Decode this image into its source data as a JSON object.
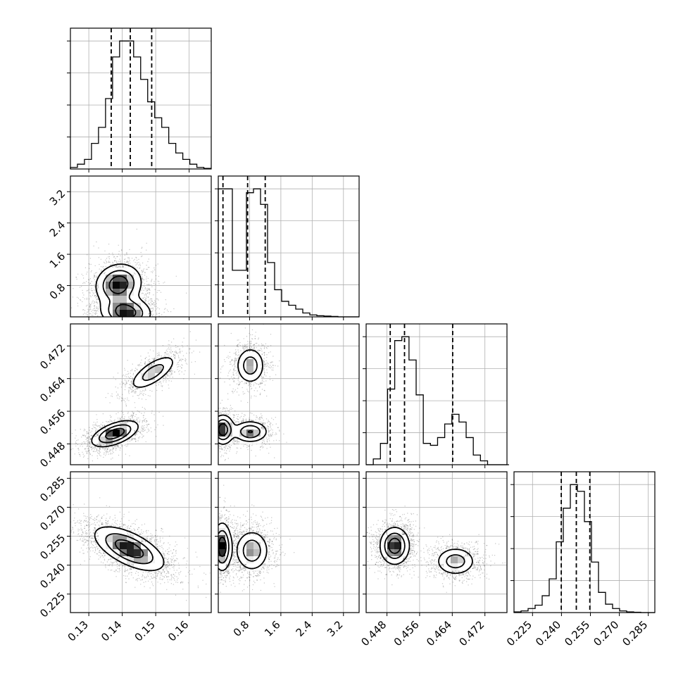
{
  "chart_data": {
    "type": "corner",
    "title": "",
    "parameters": [
      {
        "index": 0,
        "range": [
          0.1245,
          0.1666
        ],
        "ticks": [
          0.13,
          0.14,
          0.15,
          0.16
        ],
        "tick_labels": [
          "0.13",
          "0.14",
          "0.15",
          "0.16"
        ],
        "quantiles": [
          0.1367,
          0.1424,
          0.1488
        ]
      },
      {
        "index": 1,
        "range": [
          0.0,
          3.6
        ],
        "ticks": [
          0.8,
          1.6,
          2.4,
          3.2
        ],
        "tick_labels": [
          "0.8",
          "1.6",
          "2.4",
          "3.2"
        ],
        "quantiles": [
          0.12,
          0.75,
          1.2
        ]
      },
      {
        "index": 2,
        "range": [
          0.4429,
          0.4774
        ],
        "ticks": [
          0.448,
          0.456,
          0.464,
          0.472
        ],
        "tick_labels": [
          "0.448",
          "0.456",
          "0.464",
          "0.472"
        ],
        "quantiles": [
          0.4488,
          0.4523,
          0.4641
        ]
      },
      {
        "index": 3,
        "range": [
          0.2154,
          0.2884
        ],
        "ticks": [
          0.225,
          0.24,
          0.255,
          0.27,
          0.285
        ],
        "tick_labels": [
          "0.225",
          "0.240",
          "0.255",
          "0.270",
          "0.285"
        ],
        "quantiles": [
          0.2399,
          0.2477,
          0.2547
        ]
      }
    ],
    "histograms": [
      {
        "param": 0,
        "edges": [
          0.1245,
          0.1266,
          0.1287,
          0.1308,
          0.1329,
          0.135,
          0.1371,
          0.1392,
          0.1413,
          0.1434,
          0.1455,
          0.1476,
          0.1497,
          0.1518,
          0.1539,
          0.156,
          0.1581,
          0.1602,
          0.1623,
          0.1644,
          0.1665
        ],
        "counts": [
          0.5,
          1.5,
          3,
          8,
          13,
          22,
          35,
          40,
          40,
          35,
          28,
          21,
          16,
          13,
          8,
          5,
          3,
          1.5,
          0.5,
          0.2
        ]
      },
      {
        "param": 1,
        "edges": [
          0.0,
          0.18,
          0.36,
          0.54,
          0.72,
          0.9,
          1.08,
          1.26,
          1.44,
          1.62,
          1.8,
          1.98,
          2.16,
          2.34,
          2.52,
          2.7,
          2.88,
          3.06,
          3.24,
          3.42,
          3.6
        ],
        "counts": [
          3.3,
          3.3,
          1.2,
          1.2,
          3.2,
          3.3,
          2.9,
          1.4,
          0.7,
          0.4,
          0.3,
          0.2,
          0.1,
          0.05,
          0.03,
          0.02,
          0.01,
          0,
          0,
          0
        ]
      },
      {
        "param": 2,
        "edges": [
          0.4429,
          0.44465,
          0.4464,
          0.44815,
          0.4499,
          0.45165,
          0.4534,
          0.45515,
          0.4569,
          0.45865,
          0.4604,
          0.46215,
          0.4639,
          0.46565,
          0.4674,
          0.46915,
          0.4709,
          0.47265,
          0.4744,
          0.47615,
          0.4779
        ],
        "counts": [
          0,
          0.3,
          1.1,
          3.9,
          6.4,
          6.6,
          5.4,
          3.6,
          1.1,
          1.0,
          1.4,
          2.1,
          2.6,
          2.2,
          1.4,
          0.5,
          0.2,
          0,
          0,
          0
        ]
      },
      {
        "param": 3,
        "edges": [
          0.2154,
          0.21905,
          0.2227,
          0.22635,
          0.23,
          0.23365,
          0.2373,
          0.24095,
          0.2446,
          0.24825,
          0.2519,
          0.25555,
          0.2592,
          0.26285,
          0.2665,
          0.27015,
          0.2738,
          0.27745,
          0.2811,
          0.28475,
          0.2884
        ],
        "counts": [
          0.2,
          0.5,
          1.2,
          2.2,
          5,
          10,
          21,
          31,
          38,
          36,
          27,
          15,
          6,
          2.5,
          1.2,
          0.5,
          0.2,
          0.1,
          0,
          0
        ]
      }
    ],
    "joint": [
      {
        "x_param": 0,
        "y_param": 1,
        "modes": [
          {
            "x": 0.1389,
            "y": 0.83,
            "sx": 0.0034,
            "sy": 0.26,
            "rho": 0.1,
            "weight": 0.55
          },
          {
            "x": 0.1411,
            "y": 0.12,
            "sx": 0.0037,
            "sy": 0.2,
            "rho": -0.1,
            "weight": 0.45
          }
        ]
      },
      {
        "x_param": 0,
        "y_param": 2,
        "modes": [
          {
            "x": 0.1378,
            "y": 0.4505,
            "sx": 0.0035,
            "sy": 0.0016,
            "rho": 0.55,
            "weight": 0.6
          },
          {
            "x": 0.1492,
            "y": 0.4655,
            "sx": 0.0034,
            "sy": 0.0021,
            "rho": 0.7,
            "weight": 0.4
          }
        ]
      },
      {
        "x_param": 0,
        "y_param": 3,
        "modes": [
          {
            "x": 0.1421,
            "y": 0.2485,
            "sx": 0.0052,
            "sy": 0.0057,
            "rho": -0.62,
            "weight": 1.0
          }
        ]
      },
      {
        "x_param": 1,
        "y_param": 2,
        "modes": [
          {
            "x": 0.12,
            "y": 0.4515,
            "sx": 0.14,
            "sy": 0.0018,
            "rho": 0.0,
            "weight": 0.35
          },
          {
            "x": 0.82,
            "y": 0.451,
            "sx": 0.22,
            "sy": 0.0013,
            "rho": 0.0,
            "weight": 0.3
          },
          {
            "x": 0.82,
            "y": 0.4672,
            "sx": 0.18,
            "sy": 0.0022,
            "rho": 0.0,
            "weight": 0.35
          }
        ]
      },
      {
        "x_param": 1,
        "y_param": 3,
        "modes": [
          {
            "x": 0.1,
            "y": 0.2495,
            "sx": 0.12,
            "sy": 0.0062,
            "rho": 0.0,
            "weight": 0.5
          },
          {
            "x": 0.86,
            "y": 0.2475,
            "sx": 0.21,
            "sy": 0.0052,
            "rho": 0.0,
            "weight": 0.5
          }
        ]
      },
      {
        "x_param": 2,
        "y_param": 3,
        "modes": [
          {
            "x": 0.4499,
            "y": 0.25,
            "sx": 0.0018,
            "sy": 0.0048,
            "rho": 0.0,
            "weight": 0.62
          },
          {
            "x": 0.4648,
            "y": 0.242,
            "sx": 0.0024,
            "sy": 0.0036,
            "rho": 0.0,
            "weight": 0.38
          }
        ]
      }
    ],
    "grid": true,
    "legend": "none",
    "xlabel": "",
    "ylabel": ""
  }
}
